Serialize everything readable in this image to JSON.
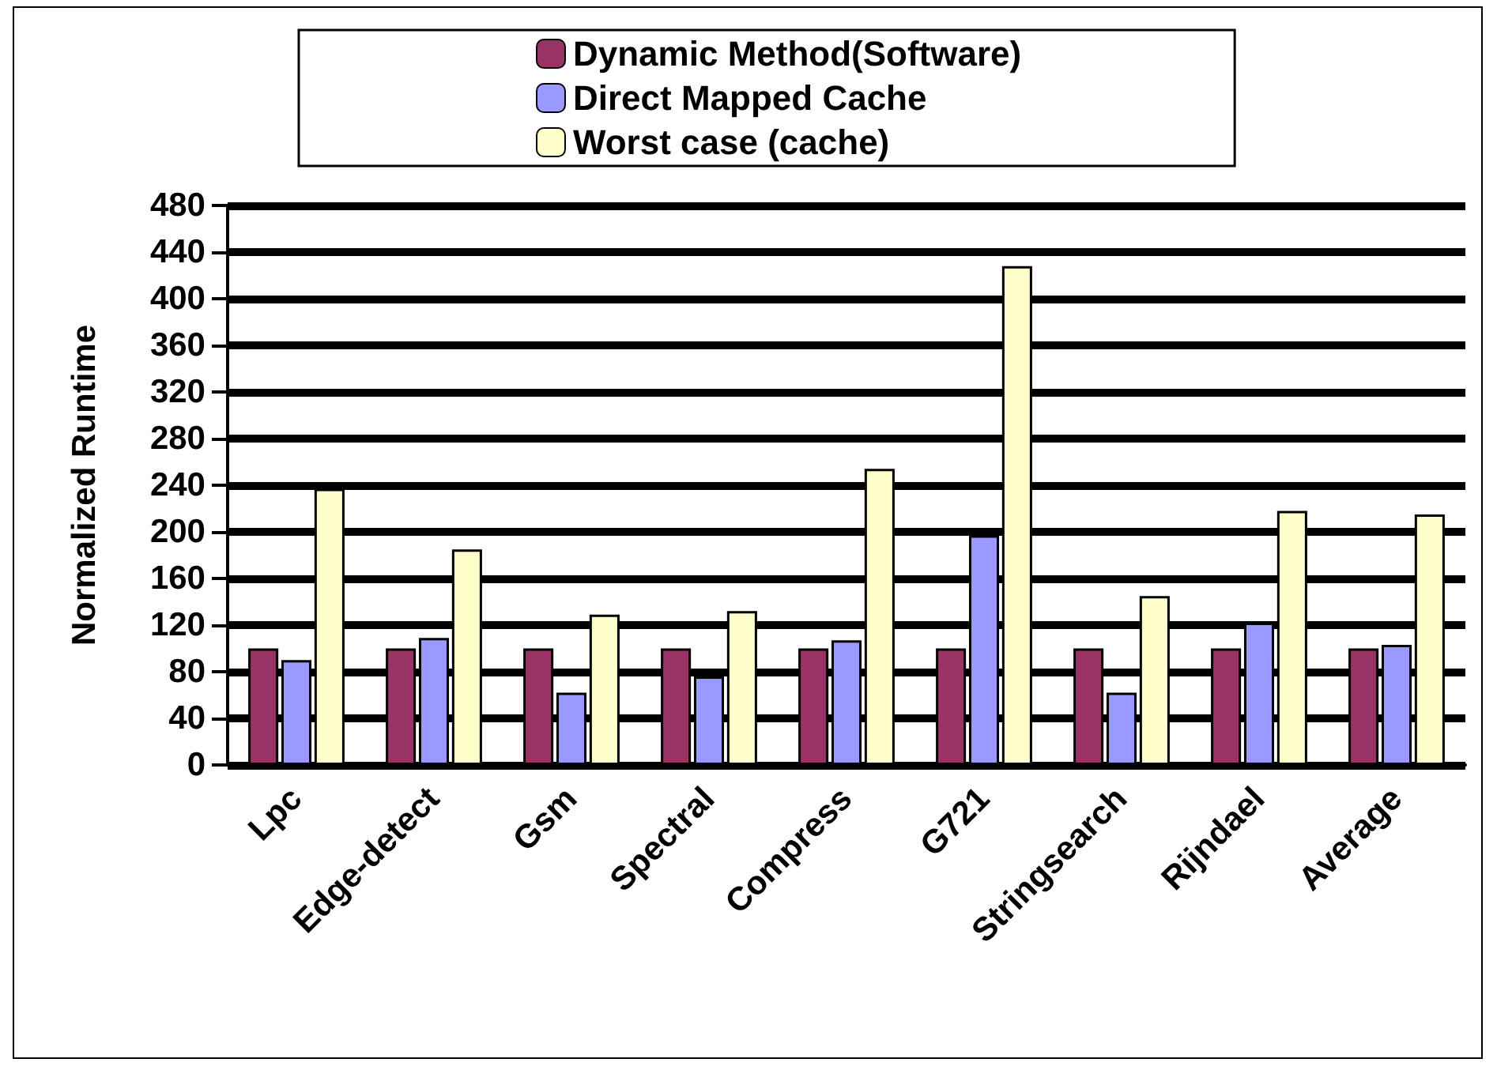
{
  "chart_data": {
    "type": "bar",
    "ylabel": "Normalized Runtime",
    "categories": [
      "Lpc",
      "Edge-detect",
      "Gsm",
      "Spectral",
      "Compress",
      "G721",
      "Stringsearch",
      "Rijndael",
      "Average"
    ],
    "series": [
      {
        "name": "Dynamic Method(Software)",
        "color": "#993366",
        "values": [
          100,
          100,
          100,
          100,
          100,
          100,
          100,
          100,
          100
        ]
      },
      {
        "name": "Direct Mapped Cache",
        "color": "#9999ff",
        "values": [
          90,
          109,
          62,
          76,
          107,
          197,
          62,
          122,
          103
        ]
      },
      {
        "name": "Worst case (cache)",
        "color": "#ffffcc",
        "values": [
          237,
          185,
          129,
          132,
          254,
          428,
          145,
          218,
          215
        ]
      }
    ],
    "ylim": [
      0,
      480
    ],
    "yticks": [
      0,
      40,
      80,
      120,
      160,
      200,
      240,
      280,
      320,
      360,
      400,
      440,
      480
    ],
    "grid": "y",
    "legend": "top"
  }
}
